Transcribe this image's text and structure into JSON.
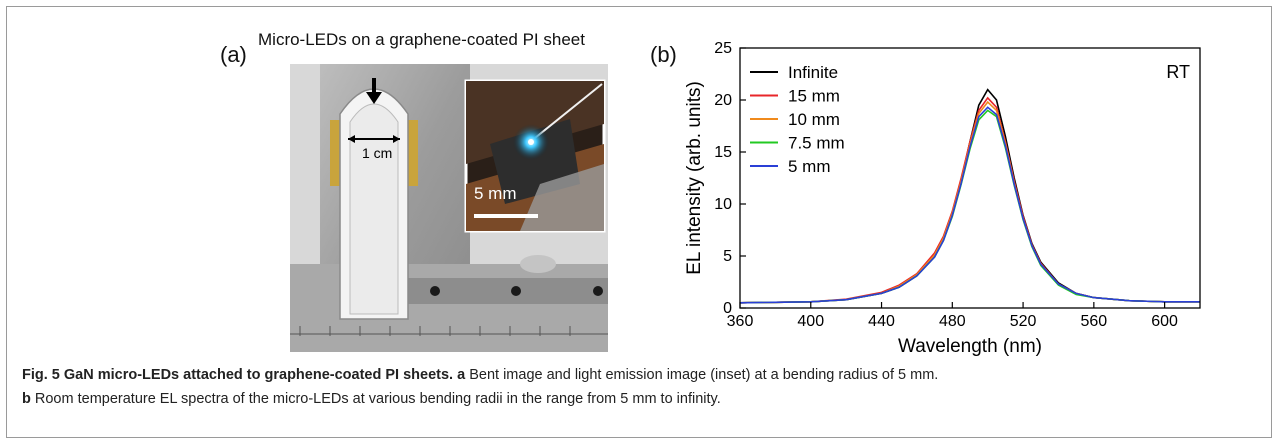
{
  "panel_a": {
    "label": "(a)",
    "title": "Micro-LEDs on a graphene-coated PI sheet",
    "dimension_label": "1 cm",
    "scale_label": "5 mm"
  },
  "chart_data": {
    "type": "line",
    "panel_label": "(b)",
    "xlabel": "Wavelength (nm)",
    "ylabel": "EL intensity (arb. units)",
    "xlim": [
      360,
      620
    ],
    "ylim": [
      0,
      25
    ],
    "xticks": [
      360,
      400,
      440,
      480,
      520,
      560,
      600
    ],
    "yticks": [
      0,
      5,
      10,
      15,
      20,
      25
    ],
    "annotation": "RT",
    "legend_position": "top-left",
    "x": [
      360,
      380,
      400,
      420,
      440,
      450,
      460,
      470,
      475,
      480,
      485,
      490,
      495,
      500,
      505,
      510,
      515,
      520,
      525,
      530,
      540,
      550,
      560,
      580,
      600,
      620
    ],
    "series": [
      {
        "name": "Infinite",
        "color": "#000000",
        "values": [
          0.5,
          0.55,
          0.6,
          0.8,
          1.4,
          2.0,
          3.1,
          5.0,
          6.6,
          9.0,
          12.3,
          16.0,
          19.5,
          21.0,
          20.0,
          16.5,
          12.5,
          8.9,
          6.2,
          4.4,
          2.4,
          1.4,
          1.0,
          0.7,
          0.6,
          0.6
        ]
      },
      {
        "name": "15 mm",
        "color": "#e8262a",
        "values": [
          0.5,
          0.55,
          0.6,
          0.85,
          1.5,
          2.2,
          3.3,
          5.3,
          6.9,
          9.3,
          12.5,
          16.0,
          19.0,
          20.2,
          19.3,
          16.0,
          12.2,
          8.8,
          6.1,
          4.3,
          2.3,
          1.4,
          1.0,
          0.7,
          0.6,
          0.6
        ]
      },
      {
        "name": "10 mm",
        "color": "#f08a1c",
        "values": [
          0.5,
          0.55,
          0.6,
          0.8,
          1.4,
          2.1,
          3.2,
          5.1,
          6.7,
          9.1,
          12.2,
          15.7,
          18.7,
          19.8,
          19.0,
          15.8,
          12.0,
          8.6,
          6.0,
          4.2,
          2.3,
          1.4,
          1.0,
          0.7,
          0.6,
          0.6
        ]
      },
      {
        "name": "7.5 mm",
        "color": "#22c922",
        "values": [
          0.5,
          0.55,
          0.6,
          0.8,
          1.4,
          2.0,
          3.1,
          4.9,
          6.5,
          8.8,
          11.9,
          15.3,
          18.1,
          19.0,
          18.4,
          15.4,
          11.8,
          8.5,
          5.9,
          4.1,
          2.2,
          1.3,
          1.0,
          0.7,
          0.6,
          0.6
        ]
      },
      {
        "name": "5 mm",
        "color": "#2a3fd6",
        "values": [
          0.5,
          0.55,
          0.6,
          0.8,
          1.4,
          2.0,
          3.1,
          4.9,
          6.5,
          8.9,
          12.0,
          15.5,
          18.4,
          19.3,
          18.6,
          15.6,
          11.9,
          8.6,
          6.0,
          4.2,
          2.3,
          1.4,
          1.0,
          0.7,
          0.6,
          0.6
        ]
      }
    ]
  },
  "caption": {
    "fig_label": "Fig. 5 GaN micro-LEDs attached to graphene-coated PI sheets.",
    "a_label": "a",
    "a_text": "Bent image and light emission image (inset) at a bending radius of 5 mm.",
    "b_label": "b",
    "b_text": "Room temperature EL spectra of the micro-LEDs at various bending radii in the range from 5 mm to infinity."
  }
}
